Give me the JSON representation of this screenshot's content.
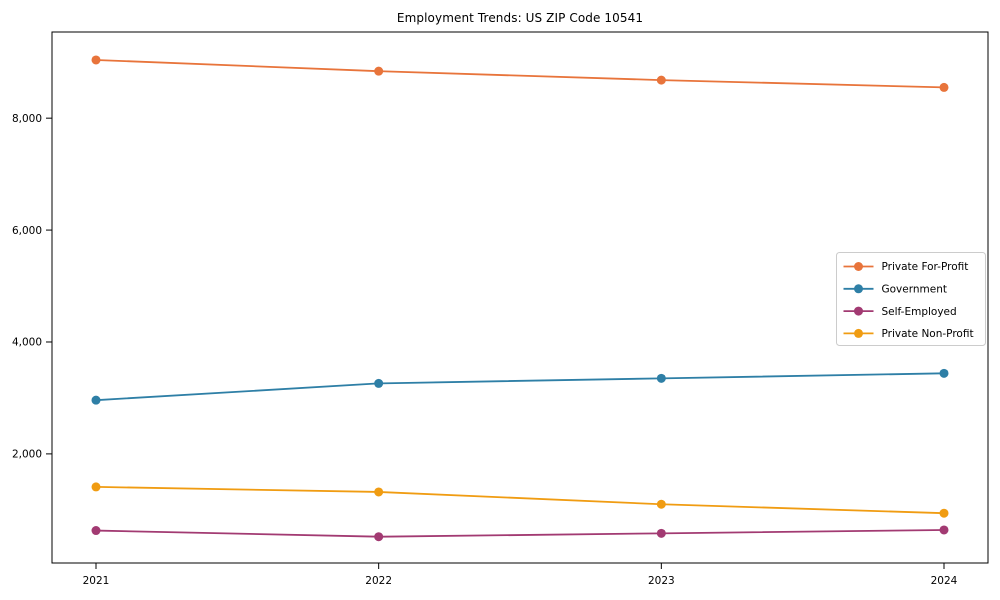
{
  "title": "Employment Trends: US ZIP Code 10541",
  "chart_data": {
    "type": "line",
    "title": "Employment Trends: US ZIP Code 10541",
    "xlabel": "",
    "ylabel": "",
    "x": [
      2021,
      2022,
      2023,
      2024
    ],
    "xtick_labels": [
      "2021",
      "2022",
      "2023",
      "2024"
    ],
    "yticks": [
      2000,
      4000,
      6000,
      8000
    ],
    "ytick_labels": [
      "2,000",
      "4,000",
      "6,000",
      "8,000"
    ],
    "ylim": [
      50,
      9540
    ],
    "grid": false,
    "marker": "o",
    "legend_position": "center right",
    "series": [
      {
        "name": "Private For-Profit",
        "color": "#e8743b",
        "values": [
          9040,
          8840,
          8680,
          8550
        ]
      },
      {
        "name": "Government",
        "color": "#2e7fa6",
        "values": [
          2960,
          3260,
          3350,
          3440
        ]
      },
      {
        "name": "Self-Employed",
        "color": "#a23a72",
        "values": [
          630,
          520,
          580,
          640
        ]
      },
      {
        "name": "Private Non-Profit",
        "color": "#f09c12",
        "values": [
          1410,
          1320,
          1100,
          940
        ]
      }
    ],
    "axis_color": "#000000",
    "legend_border_color": "#cccccc",
    "legend_bg_color": "#ffffff"
  }
}
